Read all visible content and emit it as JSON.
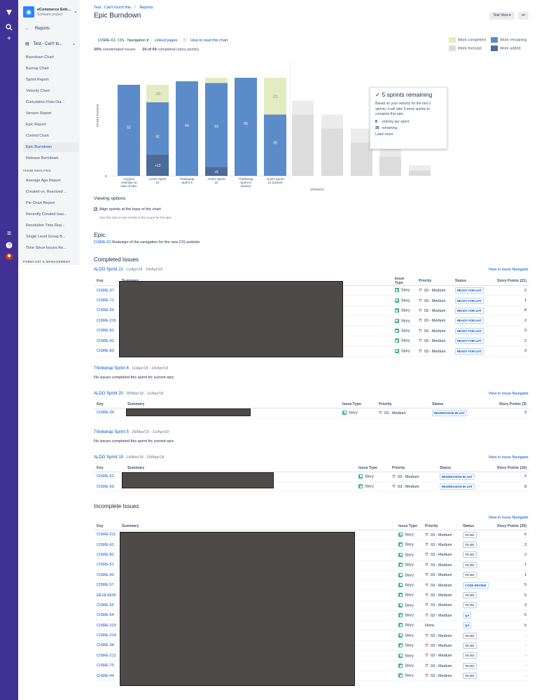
{
  "project": {
    "name": "eCommerce Enh...",
    "type": "Software project",
    "board": "Test - Can't to..."
  },
  "sidebar": {
    "back": "Reports",
    "items": [
      "Burndown Chart",
      "Burnup Chart",
      "Sprint Report",
      "Velocity Chart",
      "Cumulative Flow Dia...",
      "Version Report",
      "Epic Report",
      "Control Chart",
      "Epic Burndown",
      "Release Burndown"
    ],
    "analysis_head": "ISSUE ANALYSIS",
    "analysis_items": [
      "Average Age Report",
      "Created vs. Resolved ...",
      "Pie Chart Report",
      "Recently Created Issu...",
      "Resolution Time Rep...",
      "Single Level Group B...",
      "Time Since Issues Re..."
    ],
    "forecast_head": "FORECAST & MANAGEMENT"
  },
  "header": {
    "crumb_board": "Test - Can't touch this",
    "crumb_sep": "/",
    "crumb_reports": "Reports",
    "title": "Epic Burndown",
    "view_button": "Test View",
    "more_button": "•••"
  },
  "filters": {
    "epic_select": "CISRE-61: CIS - Navigation",
    "linked_pages": "Linked pages",
    "how_to": "How to read this chart"
  },
  "stats": {
    "unestimated_pct": "20%",
    "unestimated_label": "unestimated issues",
    "completed": "34 of 69",
    "completed_label": "completed (story points)"
  },
  "legend": {
    "completed": "Work completed",
    "forecast": "Work forecast",
    "remaining": "Work remaining",
    "added": "Work added"
  },
  "colors": {
    "completed": "#e3ecc0",
    "remaining": "#5b8cc9",
    "added": "#4c6c97",
    "forecast": "#dcdcdc"
  },
  "chart_data": {
    "type": "bar",
    "ylabel": "STORY POINTS",
    "xlabel": "SPRINTS",
    "y_zero_label": "0",
    "bars": [
      {
        "label": [
          "Original",
          "estimate at",
          "start of epic"
        ],
        "remaining": 52,
        "added": 0,
        "completed": 0,
        "remaining_label": "52",
        "added_label": "",
        "completed_label": ""
      },
      {
        "label": [
          "ALDO Sprint",
          "19"
        ],
        "remaining": 42,
        "added": 12,
        "completed": 10,
        "remaining_label": "42",
        "added_label": "+12",
        "completed_label": "-10"
      },
      {
        "label": [
          "Thinkwrap",
          "Sprint 5"
        ],
        "remaining": 54,
        "added": 0,
        "completed": 0,
        "remaining_label": "54",
        "added_label": "",
        "completed_label": ""
      },
      {
        "label": [
          "ALDO Sprint",
          "20"
        ],
        "remaining": 53,
        "added": 5,
        "completed": 3,
        "remaining_label": "53",
        "added_label": "+5",
        "completed_label": ""
      },
      {
        "label": [
          "Thinkwrap",
          "Sprint 6",
          "(active)"
        ],
        "remaining": 56,
        "added": 0,
        "completed": 0,
        "remaining_label": "56",
        "added_label": "",
        "completed_label": ""
      },
      {
        "label": [
          "ALDO Sprint",
          "21 (active)"
        ],
        "remaining": 35,
        "added": 0,
        "completed": 21,
        "remaining_label": "35",
        "added_label": "",
        "completed_label": "-21"
      }
    ],
    "forecast": [
      {
        "remaining": 35,
        "completed": 8
      },
      {
        "remaining": 27,
        "completed": 8
      },
      {
        "remaining": 19,
        "completed": 8
      },
      {
        "remaining": 11,
        "completed": 8
      },
      {
        "remaining": 3,
        "completed": 3
      }
    ],
    "ylim": [
      0,
      70
    ]
  },
  "tooltip": {
    "title": "5 sprints remaining",
    "check": "✓",
    "body": "Based on your velocity for the last 3 sprints, it will take 5 more sprints to complete this epic.",
    "velocity_val": "8",
    "velocity_label": "velocity per sprint",
    "remaining_val": "35",
    "remaining_label": "remaining",
    "learn": "Learn more"
  },
  "viewing": {
    "title": "Viewing options",
    "checkbox_label": "Align sprints at the base of the chart",
    "help": "Use this view to see trends in the scope for the epic."
  },
  "epic": {
    "title": "Epic",
    "key": "CISRE-61",
    "desc": "Redesign of the navigation for the new CIS website."
  },
  "completed_title": "Completed Issues",
  "incomplete_title": "Incomplete Issues",
  "view_nav": "View in Issue Navigator",
  "no_issues": "No issues completed this sprint for current epic.",
  "cols": {
    "key": "Key",
    "summary": "Summary",
    "type": "Issue Type",
    "priority": "Priority",
    "status": "Status"
  },
  "sprints": [
    {
      "name": "ALDO Sprint 21",
      "dates": "11/Apr/18 - 24/Apr/18",
      "points_header": "Story Points (21)",
      "rows": [
        {
          "key": "CISRE-37",
          "type": "Story",
          "priority": "03 - Medium",
          "status": "READY FOR UAT",
          "points": "2"
        },
        {
          "key": "CISRE-71",
          "type": "Story",
          "priority": "03 - Medium",
          "status": "READY FOR UAT",
          "points": "1"
        },
        {
          "key": "CISRE-50",
          "type": "Story",
          "priority": "03 - Medium",
          "status": "READY FOR UAT",
          "points": "8"
        },
        {
          "key": "CISRE-216",
          "type": "Story",
          "priority": "03 - Medium",
          "status": "READY FOR UAT",
          "points": "2"
        },
        {
          "key": "CISRE-81",
          "type": "Story",
          "priority": "03 - Medium",
          "status": "READY FOR UAT",
          "points": "3"
        },
        {
          "key": "CISRE-42",
          "type": "Story",
          "priority": "03 - Medium",
          "status": "READY FOR UAT",
          "points": "2"
        },
        {
          "key": "CISRE-83",
          "type": "Story",
          "priority": "03 - Medium",
          "status": "READY FOR UAT",
          "points": "3"
        }
      ]
    },
    {
      "name": "Thinkwrap Sprint 6",
      "dates": "11/Apr/18 - 24/Apr/18"
    },
    {
      "name": "ALDO Sprint 20",
      "dates": "28/Mar/18 - 11/Apr/18",
      "points_header": "Story Points (3)",
      "rows": [
        {
          "key": "CISRE-39",
          "type": "Story",
          "priority": "03 - Medium",
          "status": "REGRESSION IN UAT",
          "points": "3"
        }
      ]
    },
    {
      "name": "Thinkwrap Sprint 5",
      "dates": "28/Mar/18 - 11/Apr/18"
    },
    {
      "name": "ALDO Sprint 19",
      "dates": "14/Mar/18 - 29/Mar/18",
      "points_header": "Story Points (10)",
      "rows": [
        {
          "key": "CISRE-52",
          "type": "Story",
          "priority": "03 - Medium",
          "status": "REGRESSION IN UAT",
          "points": "2"
        },
        {
          "key": "CISRE-69",
          "type": "Story",
          "priority": "03 - Medium",
          "status": "REGRESSION IN UAT",
          "points": "8"
        }
      ]
    }
  ],
  "incomplete": {
    "points_header": "Story Points (35)",
    "rows": [
      {
        "key": "CISRE-211",
        "type": "Story",
        "priority": "03 - Medium",
        "status": "TO DO",
        "points": "5"
      },
      {
        "key": "CISRE-62",
        "type": "Story",
        "priority": "03 - Medium",
        "status": "TO DO",
        "points": "3"
      },
      {
        "key": "CISRE-82",
        "type": "Story",
        "priority": "03 - Medium",
        "status": "TO DO",
        "points": "2"
      },
      {
        "key": "CISRE-51",
        "type": "Story",
        "priority": "03 - Medium",
        "status": "TO DO",
        "points": "1"
      },
      {
        "key": "CISRE-40",
        "type": "Story",
        "priority": "03 - Medium",
        "status": "TO DO",
        "points": "1"
      },
      {
        "key": "CISRE-57",
        "type": "Story",
        "priority": "03 - Medium",
        "status": "CODE REVIEW",
        "points": "5"
      },
      {
        "key": "EE18-6639",
        "type": "Story",
        "priority": "03 - Medium",
        "status": "TO DO",
        "points": "5"
      },
      {
        "key": "CISRE-65",
        "type": "Story",
        "priority": "03 - Medium",
        "status": "TO DO",
        "points": "3"
      },
      {
        "key": "CISRE-64",
        "type": "Story",
        "priority": "03 - Medium",
        "status": "QA",
        "points": "5"
      },
      {
        "key": "CISRE-223",
        "type": "Story",
        "priority": "None",
        "status": "QA",
        "points": "5"
      },
      {
        "key": "CISRE-214",
        "type": "Story",
        "priority": "03 - Medium",
        "status": "TO DO",
        "points": "-"
      },
      {
        "key": "CISRE-38",
        "type": "Story",
        "priority": "03 - Medium",
        "status": "TO DO",
        "points": "-"
      },
      {
        "key": "CISRE-212",
        "type": "Story",
        "priority": "03 - Medium",
        "status": "TO DO",
        "points": "-"
      },
      {
        "key": "CISRE-70",
        "type": "Story",
        "priority": "03 - Medium",
        "status": "TO DO",
        "points": "-"
      },
      {
        "key": "CISRE-44",
        "type": "Story",
        "priority": "03 - Medium",
        "status": "TO DO",
        "points": "-"
      }
    ]
  }
}
